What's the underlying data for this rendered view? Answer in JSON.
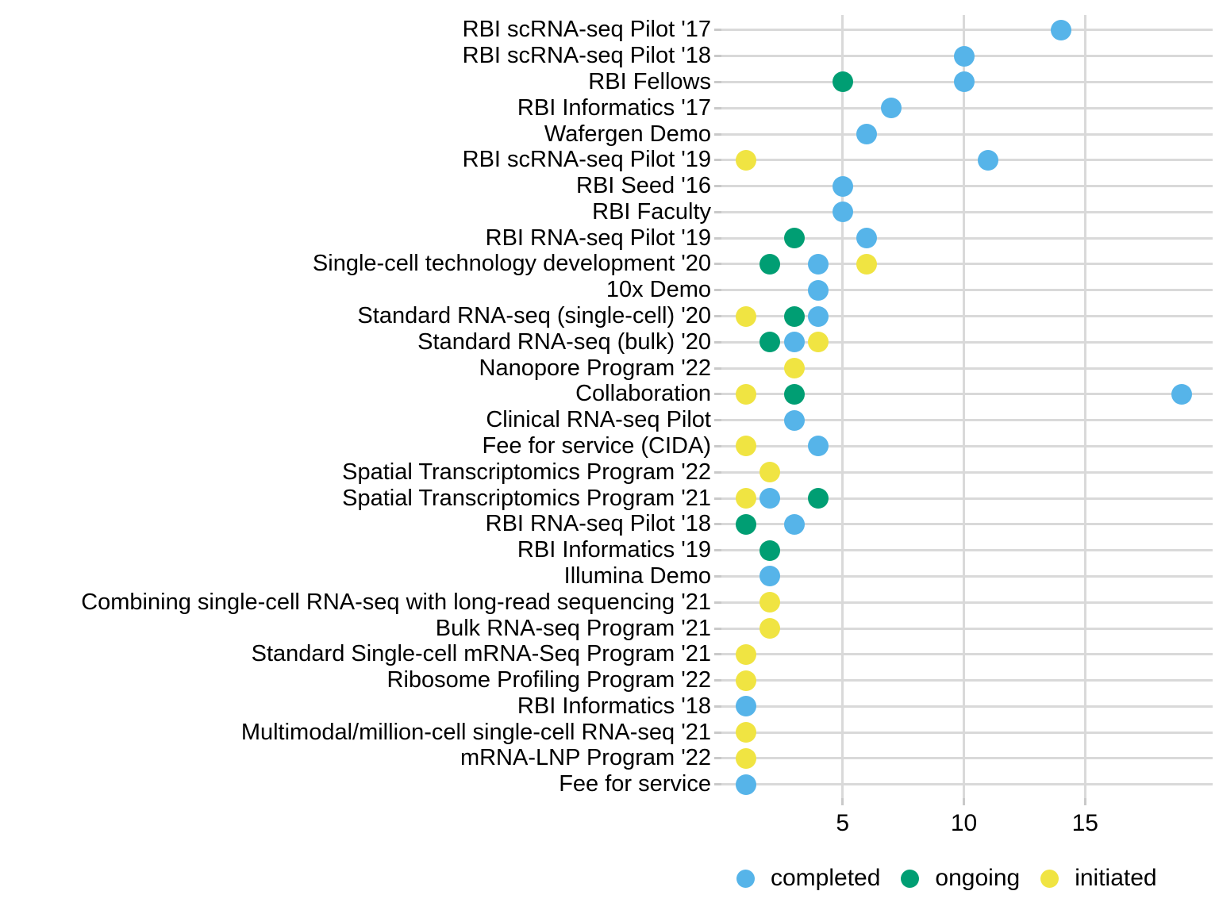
{
  "chart_data": {
    "type": "scatter",
    "title": "",
    "xlabel": "",
    "ylabel": "",
    "x_ticks": [
      5,
      10,
      15
    ],
    "x_range": [
      0,
      20.3
    ],
    "grid": true,
    "legend_position": "bottom",
    "colors": {
      "completed": "#56B4E9",
      "ongoing": "#009E73",
      "initiated": "#F0E442"
    },
    "draw_order": [
      "ongoing",
      "completed",
      "initiated"
    ],
    "legend": [
      {
        "series": "completed",
        "label": "completed"
      },
      {
        "series": "ongoing",
        "label": "ongoing"
      },
      {
        "series": "initiated",
        "label": "initiated"
      }
    ],
    "rows": [
      {
        "label": "RBI scRNA-seq Pilot '17",
        "completed": 14
      },
      {
        "label": "RBI scRNA-seq Pilot '18",
        "completed": 10
      },
      {
        "label": "RBI Fellows",
        "completed": 10,
        "ongoing": 5
      },
      {
        "label": "RBI Informatics '17",
        "completed": 7
      },
      {
        "label": "Wafergen Demo",
        "completed": 6
      },
      {
        "label": "RBI scRNA-seq Pilot '19",
        "completed": 11,
        "initiated": 1
      },
      {
        "label": "RBI Seed '16",
        "completed": 5
      },
      {
        "label": "RBI Faculty",
        "completed": 5
      },
      {
        "label": "RBI RNA-seq Pilot '19",
        "completed": 6,
        "ongoing": 3
      },
      {
        "label": "Single-cell technology development '20",
        "completed": 4,
        "ongoing": 2,
        "initiated": 6
      },
      {
        "label": "10x Demo",
        "completed": 4
      },
      {
        "label": "Standard RNA-seq (single-cell) '20",
        "completed": 4,
        "ongoing": 3,
        "initiated": 1
      },
      {
        "label": "Standard RNA-seq (bulk) '20",
        "completed": 3,
        "ongoing": 2,
        "initiated": 4
      },
      {
        "label": "Nanopore Program '22",
        "initiated": 3
      },
      {
        "label": "Collaboration",
        "completed": 19,
        "ongoing": 3,
        "initiated": 1
      },
      {
        "label": "Clinical RNA-seq Pilot",
        "completed": 3
      },
      {
        "label": "Fee for service (CIDA)",
        "completed": 4,
        "initiated": 1
      },
      {
        "label": "Spatial Transcriptomics Program '22",
        "initiated": 2
      },
      {
        "label": "Spatial Transcriptomics Program '21",
        "completed": 2,
        "ongoing": 4,
        "initiated": 1
      },
      {
        "label": "RBI RNA-seq Pilot '18",
        "completed": 3,
        "ongoing": 1
      },
      {
        "label": "RBI Informatics '19",
        "ongoing": 2
      },
      {
        "label": "Illumina Demo",
        "completed": 2
      },
      {
        "label": "Combining single-cell RNA-seq with long-read sequencing '21",
        "initiated": 2
      },
      {
        "label": "Bulk RNA-seq Program '21",
        "initiated": 2
      },
      {
        "label": "Standard Single-cell mRNA-Seq Program '21",
        "initiated": 1
      },
      {
        "label": "Ribosome Profiling Program '22",
        "initiated": 1
      },
      {
        "label": "RBI Informatics '18",
        "completed": 1
      },
      {
        "label": "Multimodal/million-cell single-cell RNA-seq '21",
        "initiated": 1
      },
      {
        "label": "mRNA-LNP Program '22",
        "initiated": 1
      },
      {
        "label": "Fee for service",
        "completed": 1
      }
    ]
  }
}
